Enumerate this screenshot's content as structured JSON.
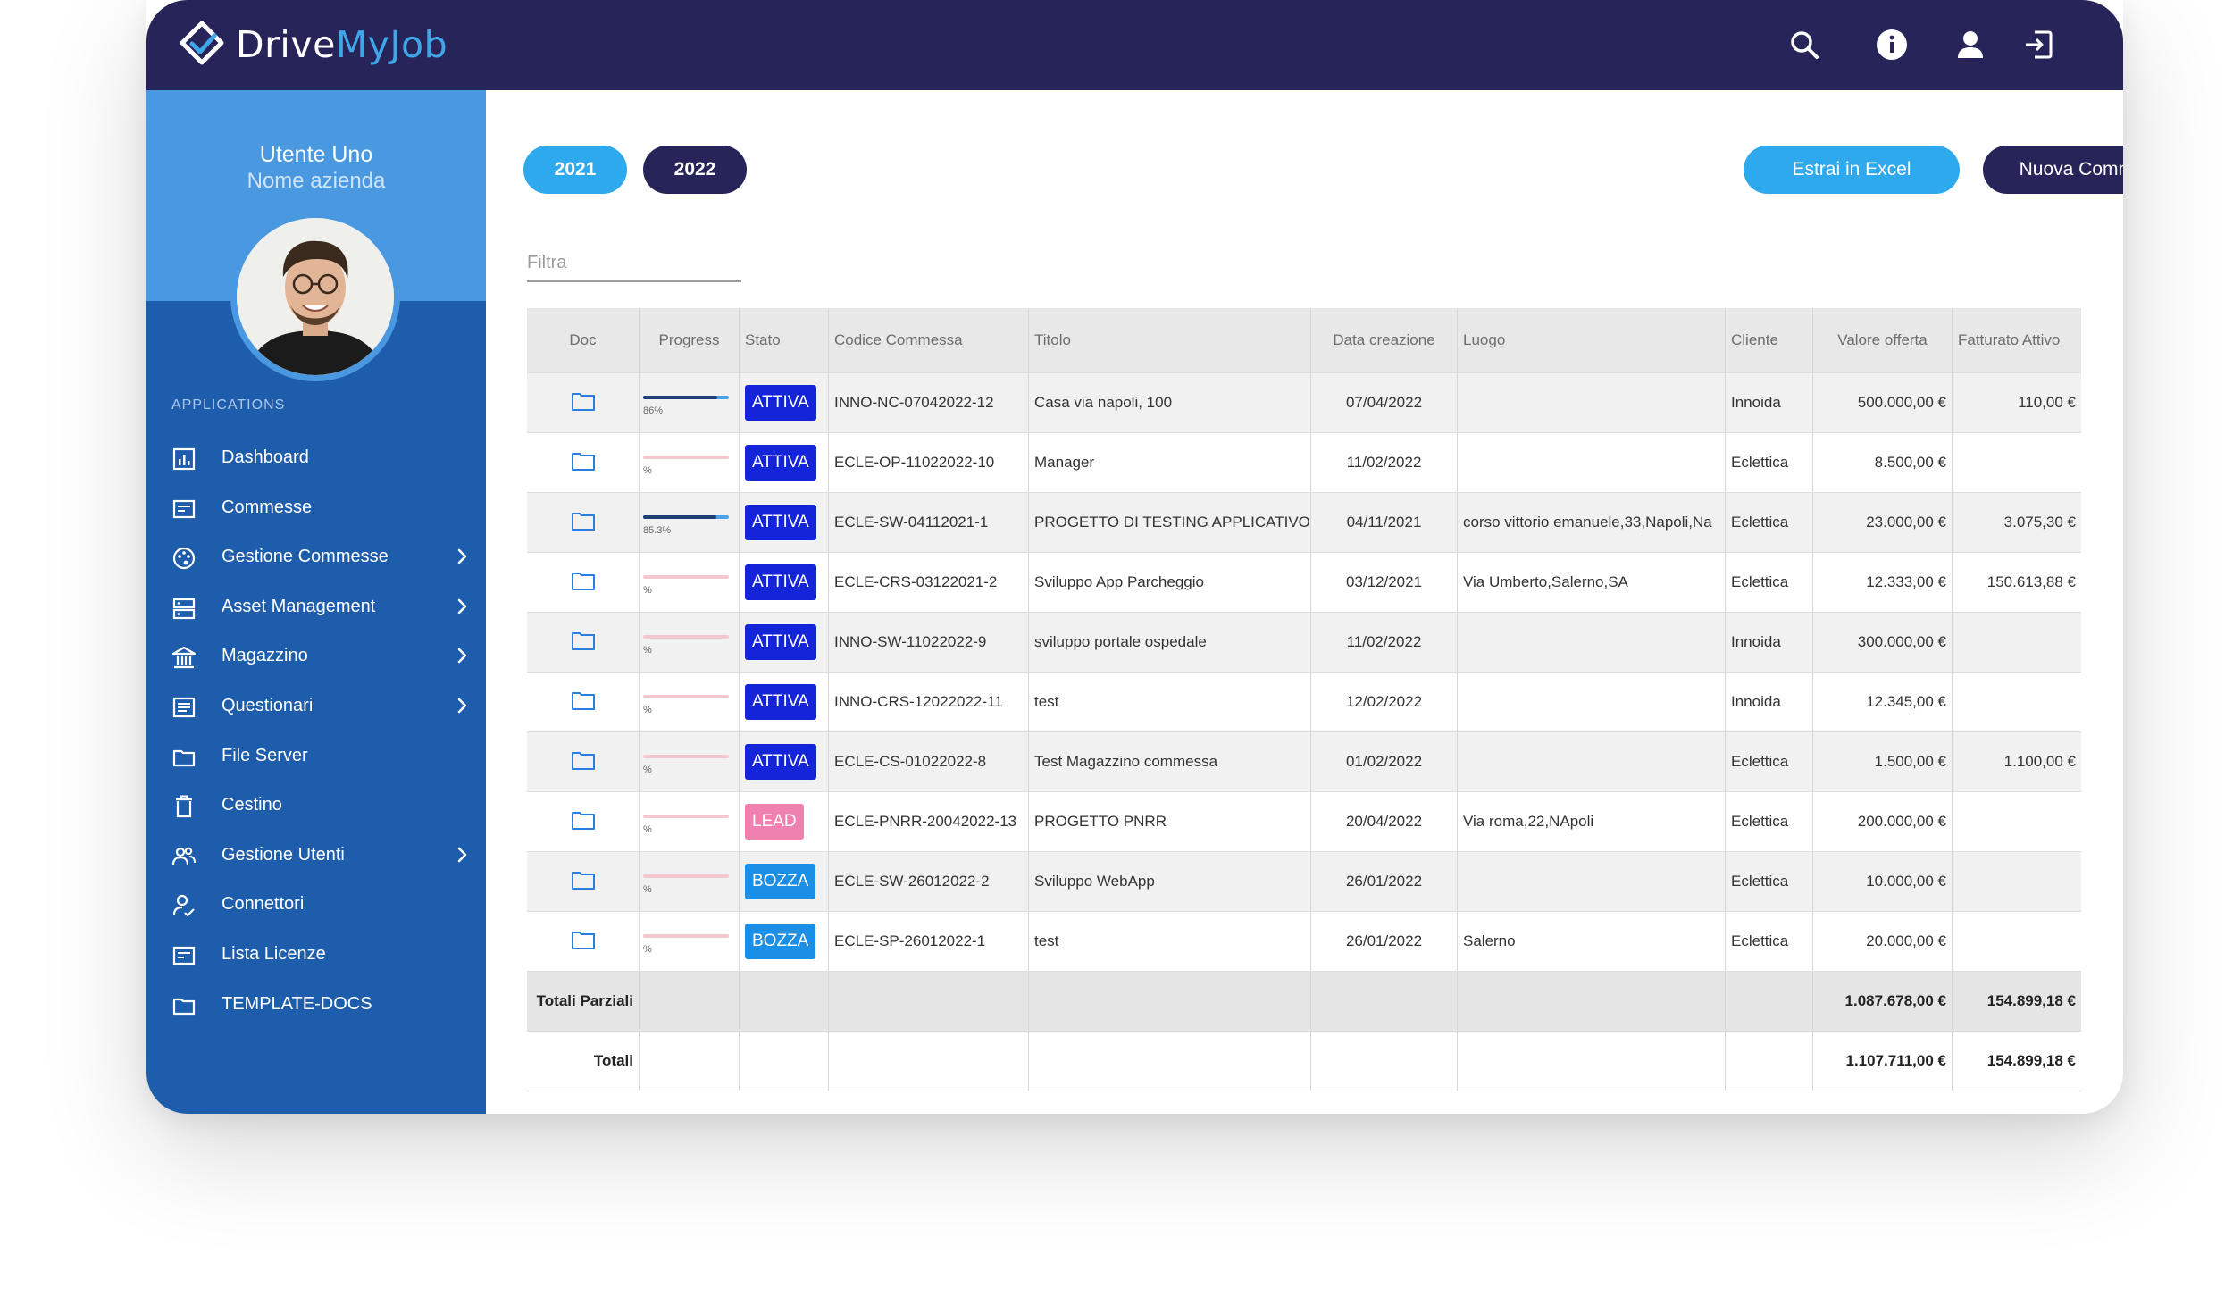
{
  "app": {
    "brand_part1": "Drive",
    "brand_part2": "MyJob"
  },
  "topbar": {
    "icons": [
      "search-icon",
      "info-icon",
      "user-icon",
      "logout-icon"
    ]
  },
  "user": {
    "name": "Utente Uno",
    "company": "Nome azienda"
  },
  "sidebar": {
    "section_label": "APPLICATIONS",
    "items": [
      {
        "label": "Dashboard",
        "icon": "dashboard-icon",
        "has_submenu": false
      },
      {
        "label": "Commesse",
        "icon": "commesse-icon",
        "has_submenu": false
      },
      {
        "label": "Gestione Commesse",
        "icon": "palette-icon",
        "has_submenu": true
      },
      {
        "label": "Asset Management",
        "icon": "server-icon",
        "has_submenu": true
      },
      {
        "label": "Magazzino",
        "icon": "warehouse-icon",
        "has_submenu": true
      },
      {
        "label": "Questionari",
        "icon": "questionnaire-icon",
        "has_submenu": true
      },
      {
        "label": "File Server",
        "icon": "folder-icon",
        "has_submenu": false
      },
      {
        "label": "Cestino",
        "icon": "trash-icon",
        "has_submenu": false
      },
      {
        "label": "Gestione Utenti",
        "icon": "users-icon",
        "has_submenu": true
      },
      {
        "label": "Connettori",
        "icon": "connector-icon",
        "has_submenu": false
      },
      {
        "label": "Lista Licenze",
        "icon": "license-icon",
        "has_submenu": false
      },
      {
        "label": "TEMPLATE-DOCS",
        "icon": "folder-icon",
        "has_submenu": false
      }
    ]
  },
  "toolbar": {
    "year_2021": "2021",
    "year_2022": "2022",
    "export_label": "Estrai in Excel",
    "new_label": "Nuova Commessa"
  },
  "colors": {
    "topbar": "#262459",
    "sidebar": "#1e5dab",
    "sidebar_header": "#4a98e0",
    "light_button": "#2fa9ee",
    "dark_button": "#262459",
    "status_attiva": "#1424d8",
    "status_lead": "#ee81b0",
    "status_bozza": "#1b8ee6",
    "progress_fill": "#1f3e73",
    "progress_empty": "#f4c6cf"
  },
  "filter": {
    "placeholder": "Filtra"
  },
  "table": {
    "headers": {
      "doc": "Doc",
      "progress": "Progress",
      "stato": "Stato",
      "codice": "Codice Commessa",
      "titolo": "Titolo",
      "data": "Data creazione",
      "luogo": "Luogo",
      "cliente": "Cliente",
      "valore": "Valore offerta",
      "fatturato": "Fatturato Attivo"
    },
    "rows": [
      {
        "progress": 0.86,
        "progress_label": "86%",
        "stato": "ATTIVA",
        "status_class": "attiva",
        "codice": "INNO-NC-07042022-12",
        "titolo": "Casa via napoli, 100",
        "data": "07/04/2022",
        "luogo": "",
        "cliente": "Innoida",
        "valore": "500.000,00 €",
        "fatturato": "110,00 €"
      },
      {
        "progress": 0,
        "progress_label": "%",
        "stato": "ATTIVA",
        "status_class": "attiva",
        "codice": "ECLE-OP-11022022-10",
        "titolo": "Manager",
        "data": "11/02/2022",
        "luogo": "",
        "cliente": "Eclettica",
        "valore": "8.500,00 €",
        "fatturato": ""
      },
      {
        "progress": 0.853,
        "progress_label": "85.3%",
        "stato": "ATTIVA",
        "status_class": "attiva",
        "codice": "ECLE-SW-04112021-1",
        "titolo": "PROGETTO DI TESTING APPLICATIVO",
        "data": "04/11/2021",
        "luogo": "corso vittorio emanuele,33,Napoli,Na",
        "cliente": "Eclettica",
        "valore": "23.000,00 €",
        "fatturato": "3.075,30 €"
      },
      {
        "progress": 0,
        "progress_label": "%",
        "stato": "ATTIVA",
        "status_class": "attiva",
        "codice": "ECLE-CRS-03122021-2",
        "titolo": "Sviluppo App Parcheggio",
        "data": "03/12/2021",
        "luogo": "Via Umberto,Salerno,SA",
        "cliente": "Eclettica",
        "valore": "12.333,00 €",
        "fatturato": "150.613,88 €"
      },
      {
        "progress": 0,
        "progress_label": "%",
        "stato": "ATTIVA",
        "status_class": "attiva",
        "codice": "INNO-SW-11022022-9",
        "titolo": "sviluppo portale ospedale",
        "data": "11/02/2022",
        "luogo": "",
        "cliente": "Innoida",
        "valore": "300.000,00 €",
        "fatturato": ""
      },
      {
        "progress": 0,
        "progress_label": "%",
        "stato": "ATTIVA",
        "status_class": "attiva",
        "codice": "INNO-CRS-12022022-11",
        "titolo": "test",
        "data": "12/02/2022",
        "luogo": "",
        "cliente": "Innoida",
        "valore": "12.345,00 €",
        "fatturato": ""
      },
      {
        "progress": 0,
        "progress_label": "%",
        "stato": "ATTIVA",
        "status_class": "attiva",
        "codice": "ECLE-CS-01022022-8",
        "titolo": "Test Magazzino commessa",
        "data": "01/02/2022",
        "luogo": "",
        "cliente": "Eclettica",
        "valore": "1.500,00 €",
        "fatturato": "1.100,00 €"
      },
      {
        "progress": 0,
        "progress_label": "%",
        "stato": "LEAD",
        "status_class": "lead",
        "codice": "ECLE-PNRR-20042022-13",
        "titolo": "PROGETTO PNRR",
        "data": "20/04/2022",
        "luogo": "Via roma,22,NApoli",
        "cliente": "Eclettica",
        "valore": "200.000,00 €",
        "fatturato": ""
      },
      {
        "progress": 0,
        "progress_label": "%",
        "stato": "BOZZA",
        "status_class": "bozza",
        "codice": "ECLE-SW-26012022-2",
        "titolo": "Sviluppo WebApp",
        "data": "26/01/2022",
        "luogo": "",
        "cliente": "Eclettica",
        "valore": "10.000,00 €",
        "fatturato": ""
      },
      {
        "progress": 0,
        "progress_label": "%",
        "stato": "BOZZA",
        "status_class": "bozza",
        "codice": "ECLE-SP-26012022-1",
        "titolo": "test",
        "data": "26/01/2022",
        "luogo": "Salerno",
        "cliente": "Eclettica",
        "valore": "20.000,00 €",
        "fatturato": ""
      }
    ],
    "totals": [
      {
        "label": "Totali Parziali",
        "valore": "1.087.678,00 €",
        "fatturato": "154.899,18 €"
      },
      {
        "label": "Totali",
        "valore": "1.107.711,00 €",
        "fatturato": "154.899,18 €"
      }
    ]
  }
}
